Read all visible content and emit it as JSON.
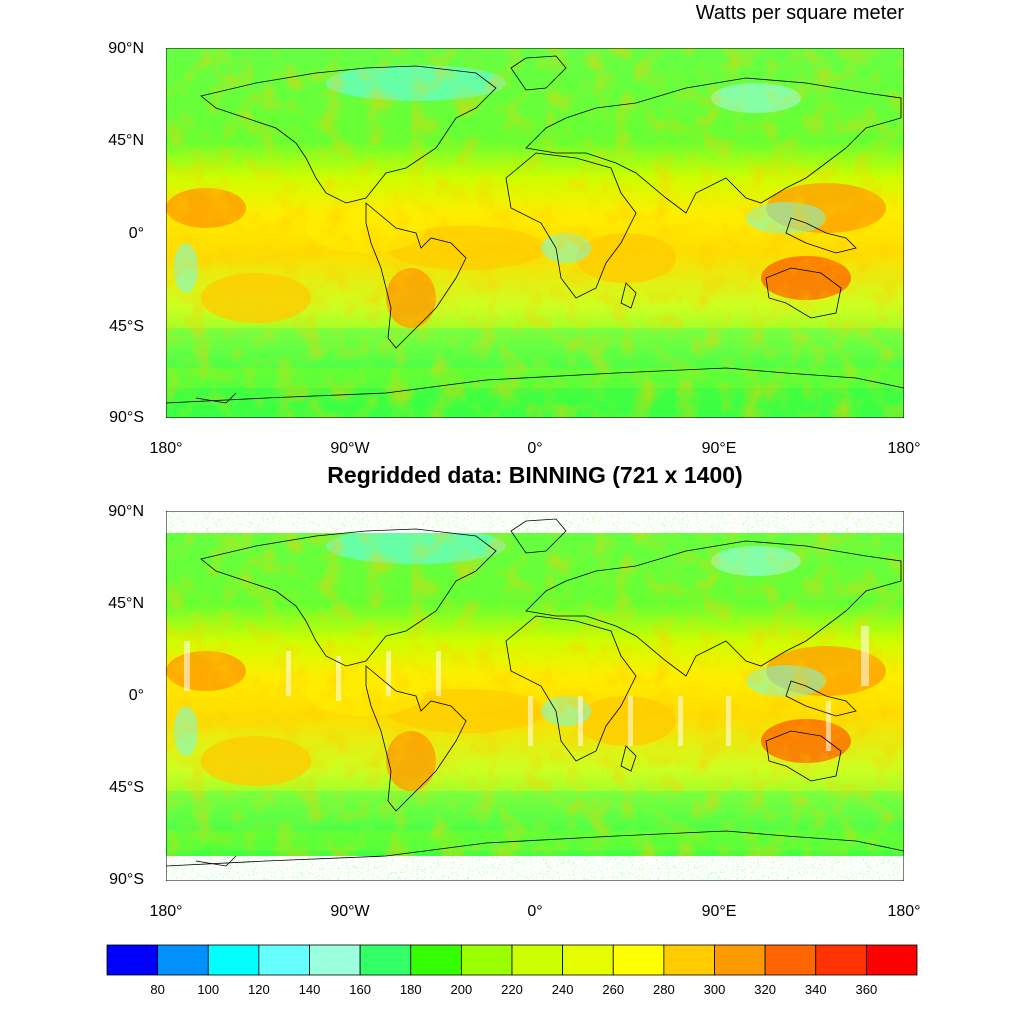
{
  "units_label": "Watts per square meter",
  "panel2_title": "Regridded data: BINNING (721 x 1400)",
  "lat_ticks": [
    "90°N",
    "45°N",
    "0°",
    "45°S",
    "90°S"
  ],
  "lon_ticks": [
    "180°",
    "90°W",
    "0°",
    "90°E",
    "180°"
  ],
  "colorbar": {
    "labels": [
      "80",
      "100",
      "120",
      "140",
      "160",
      "180",
      "200",
      "220",
      "240",
      "260",
      "280",
      "300",
      "320",
      "340",
      "360"
    ],
    "colors": [
      "#0000ff",
      "#0091ff",
      "#00ffff",
      "#66ffff",
      "#99ffdd",
      "#33ff66",
      "#33ff00",
      "#99ff00",
      "#ccff00",
      "#e6ff00",
      "#ffff00",
      "#ffcc00",
      "#ff9900",
      "#ff6600",
      "#ff3300",
      "#ff0000"
    ]
  },
  "panels": [
    {
      "name": "original",
      "field_colors": [
        "#66ff33",
        "#99ff33",
        "#ccff00",
        "#ffff00",
        "#ffcc00",
        "#ff9900",
        "#66ffff",
        "#33ff66"
      ]
    },
    {
      "name": "regridded",
      "field_colors": [
        "#66ff33",
        "#99ff33",
        "#ccff00",
        "#ffff00",
        "#ffcc00",
        "#ff9900",
        "#66ffff",
        "#33ff66"
      ]
    }
  ]
}
